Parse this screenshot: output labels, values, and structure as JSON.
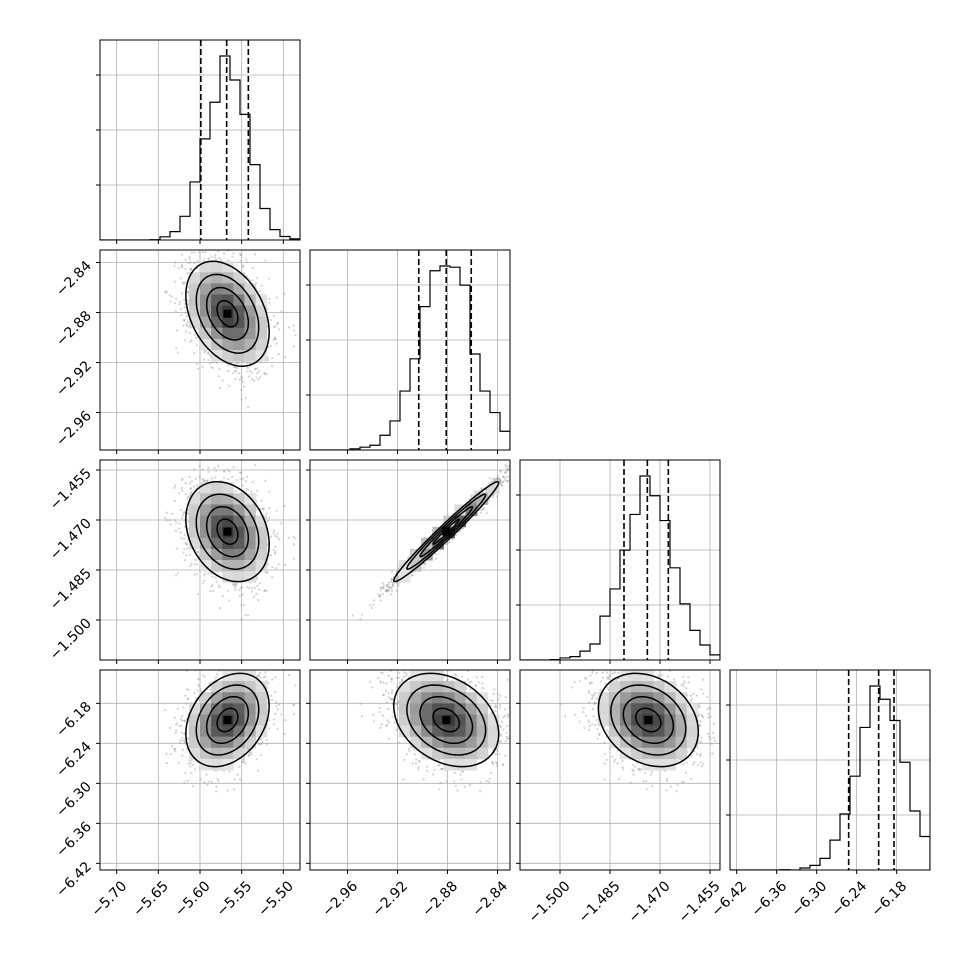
{
  "chart_data": {
    "type": "corner",
    "style": {
      "grid": true,
      "hist_color": "#000000",
      "quantile_line": "dashed",
      "scatter_color": "#808080"
    },
    "parameters": [
      {
        "range": [
          -5.72,
          -5.48
        ],
        "ticks": [
          "−5.70",
          "−5.65",
          "−5.60",
          "−5.55",
          "−5.50"
        ],
        "tick_values": [
          -5.7,
          -5.65,
          -5.6,
          -5.55,
          -5.5
        ],
        "mean": -5.567,
        "sd": 0.025,
        "quantiles": [
          -5.599,
          -5.568,
          -5.542
        ]
      },
      {
        "range": [
          -2.99,
          -2.83
        ],
        "ticks": [
          "−2.96",
          "−2.92",
          "−2.88",
          "−2.84"
        ],
        "tick_values": [
          -2.96,
          -2.92,
          -2.88,
          -2.84
        ],
        "mean": -2.881,
        "sd": 0.021,
        "quantiles": [
          -2.903,
          -2.881,
          -2.861
        ]
      },
      {
        "range": [
          -1.512,
          -1.452
        ],
        "ticks": [
          "−1.500",
          "−1.485",
          "−1.470",
          "−1.455"
        ],
        "tick_values": [
          -1.5,
          -1.485,
          -1.47,
          -1.455
        ],
        "mean": -1.4735,
        "sd": 0.0075,
        "quantiles": [
          -1.4808,
          -1.4738,
          -1.4675
        ]
      },
      {
        "range": [
          -6.43,
          -6.13
        ],
        "ticks": [
          "−6.42",
          "−6.36",
          "−6.30",
          "−6.24",
          "−6.18"
        ],
        "tick_values": [
          -6.42,
          -6.36,
          -6.3,
          -6.24,
          -6.18
        ],
        "mean": -6.205,
        "sd": 0.035,
        "quantiles": [
          -6.252,
          -6.207,
          -6.184
        ]
      }
    ],
    "correlations": [
      [
        1,
        -0.35,
        -0.25,
        0.3
      ],
      [
        -0.35,
        1,
        0.98,
        -0.3
      ],
      [
        -0.25,
        0.98,
        1,
        -0.25
      ],
      [
        0.3,
        -0.3,
        -0.25,
        1
      ]
    ]
  }
}
